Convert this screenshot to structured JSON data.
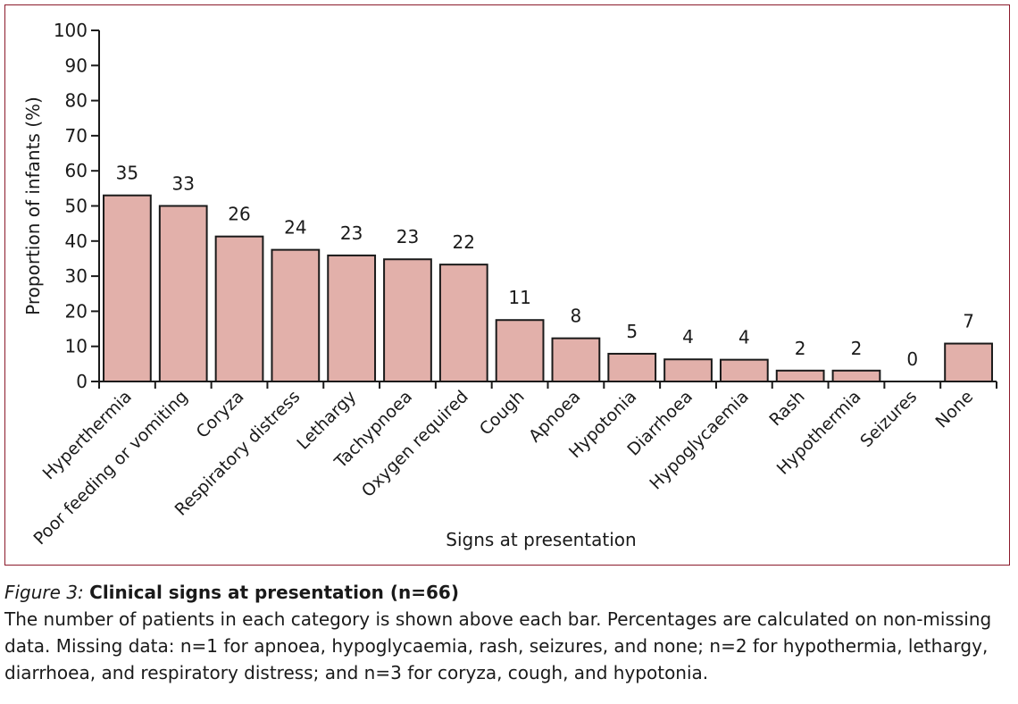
{
  "chart_data": {
    "type": "bar",
    "categories": [
      "Hyperthermia",
      "Poor feeding or vomiting",
      "Coryza",
      "Respiratory distress",
      "Lethargy",
      "Tachypnoea",
      "Oxygen required",
      "Cough",
      "Apnoea",
      "Hypotonia",
      "Diarrhoea",
      "Hypoglycaemia",
      "Rash",
      "Hypothermia",
      "Seizures",
      "None"
    ],
    "values": [
      53.0,
      50.0,
      41.3,
      37.5,
      35.9,
      34.8,
      33.3,
      17.5,
      12.3,
      7.9,
      6.3,
      6.2,
      3.1,
      3.1,
      0,
      10.8
    ],
    "data_labels": [
      "35",
      "33",
      "26",
      "24",
      "23",
      "23",
      "22",
      "11",
      "8",
      "5",
      "4",
      "4",
      "2",
      "2",
      "0",
      "7"
    ],
    "xlabel": "Signs at presentation",
    "ylabel": "Proportion of infants (%)",
    "ylim": [
      0,
      100
    ],
    "yticks": [
      "0",
      "10",
      "20",
      "30",
      "40",
      "50",
      "60",
      "70",
      "80",
      "90",
      "100"
    ],
    "grid": false,
    "bar_color": "#e2b0aa",
    "bar_edge_color": "#1a1a1a"
  },
  "caption": {
    "figure_number": "Figure 3:",
    "title": "Clinical signs at presentation (n=66)",
    "note": "The number of patients in each category is shown above each bar. Percentages are calculated on non-missing data. Missing data: n=1 for apnoea, hypoglycaemia, rash, seizures, and none; n=2 for hypothermia, lethargy, diarrhoea, and respiratory distress; and n=3 for coryza, cough, and hypotonia."
  },
  "frame_color": "#8b1a2b"
}
